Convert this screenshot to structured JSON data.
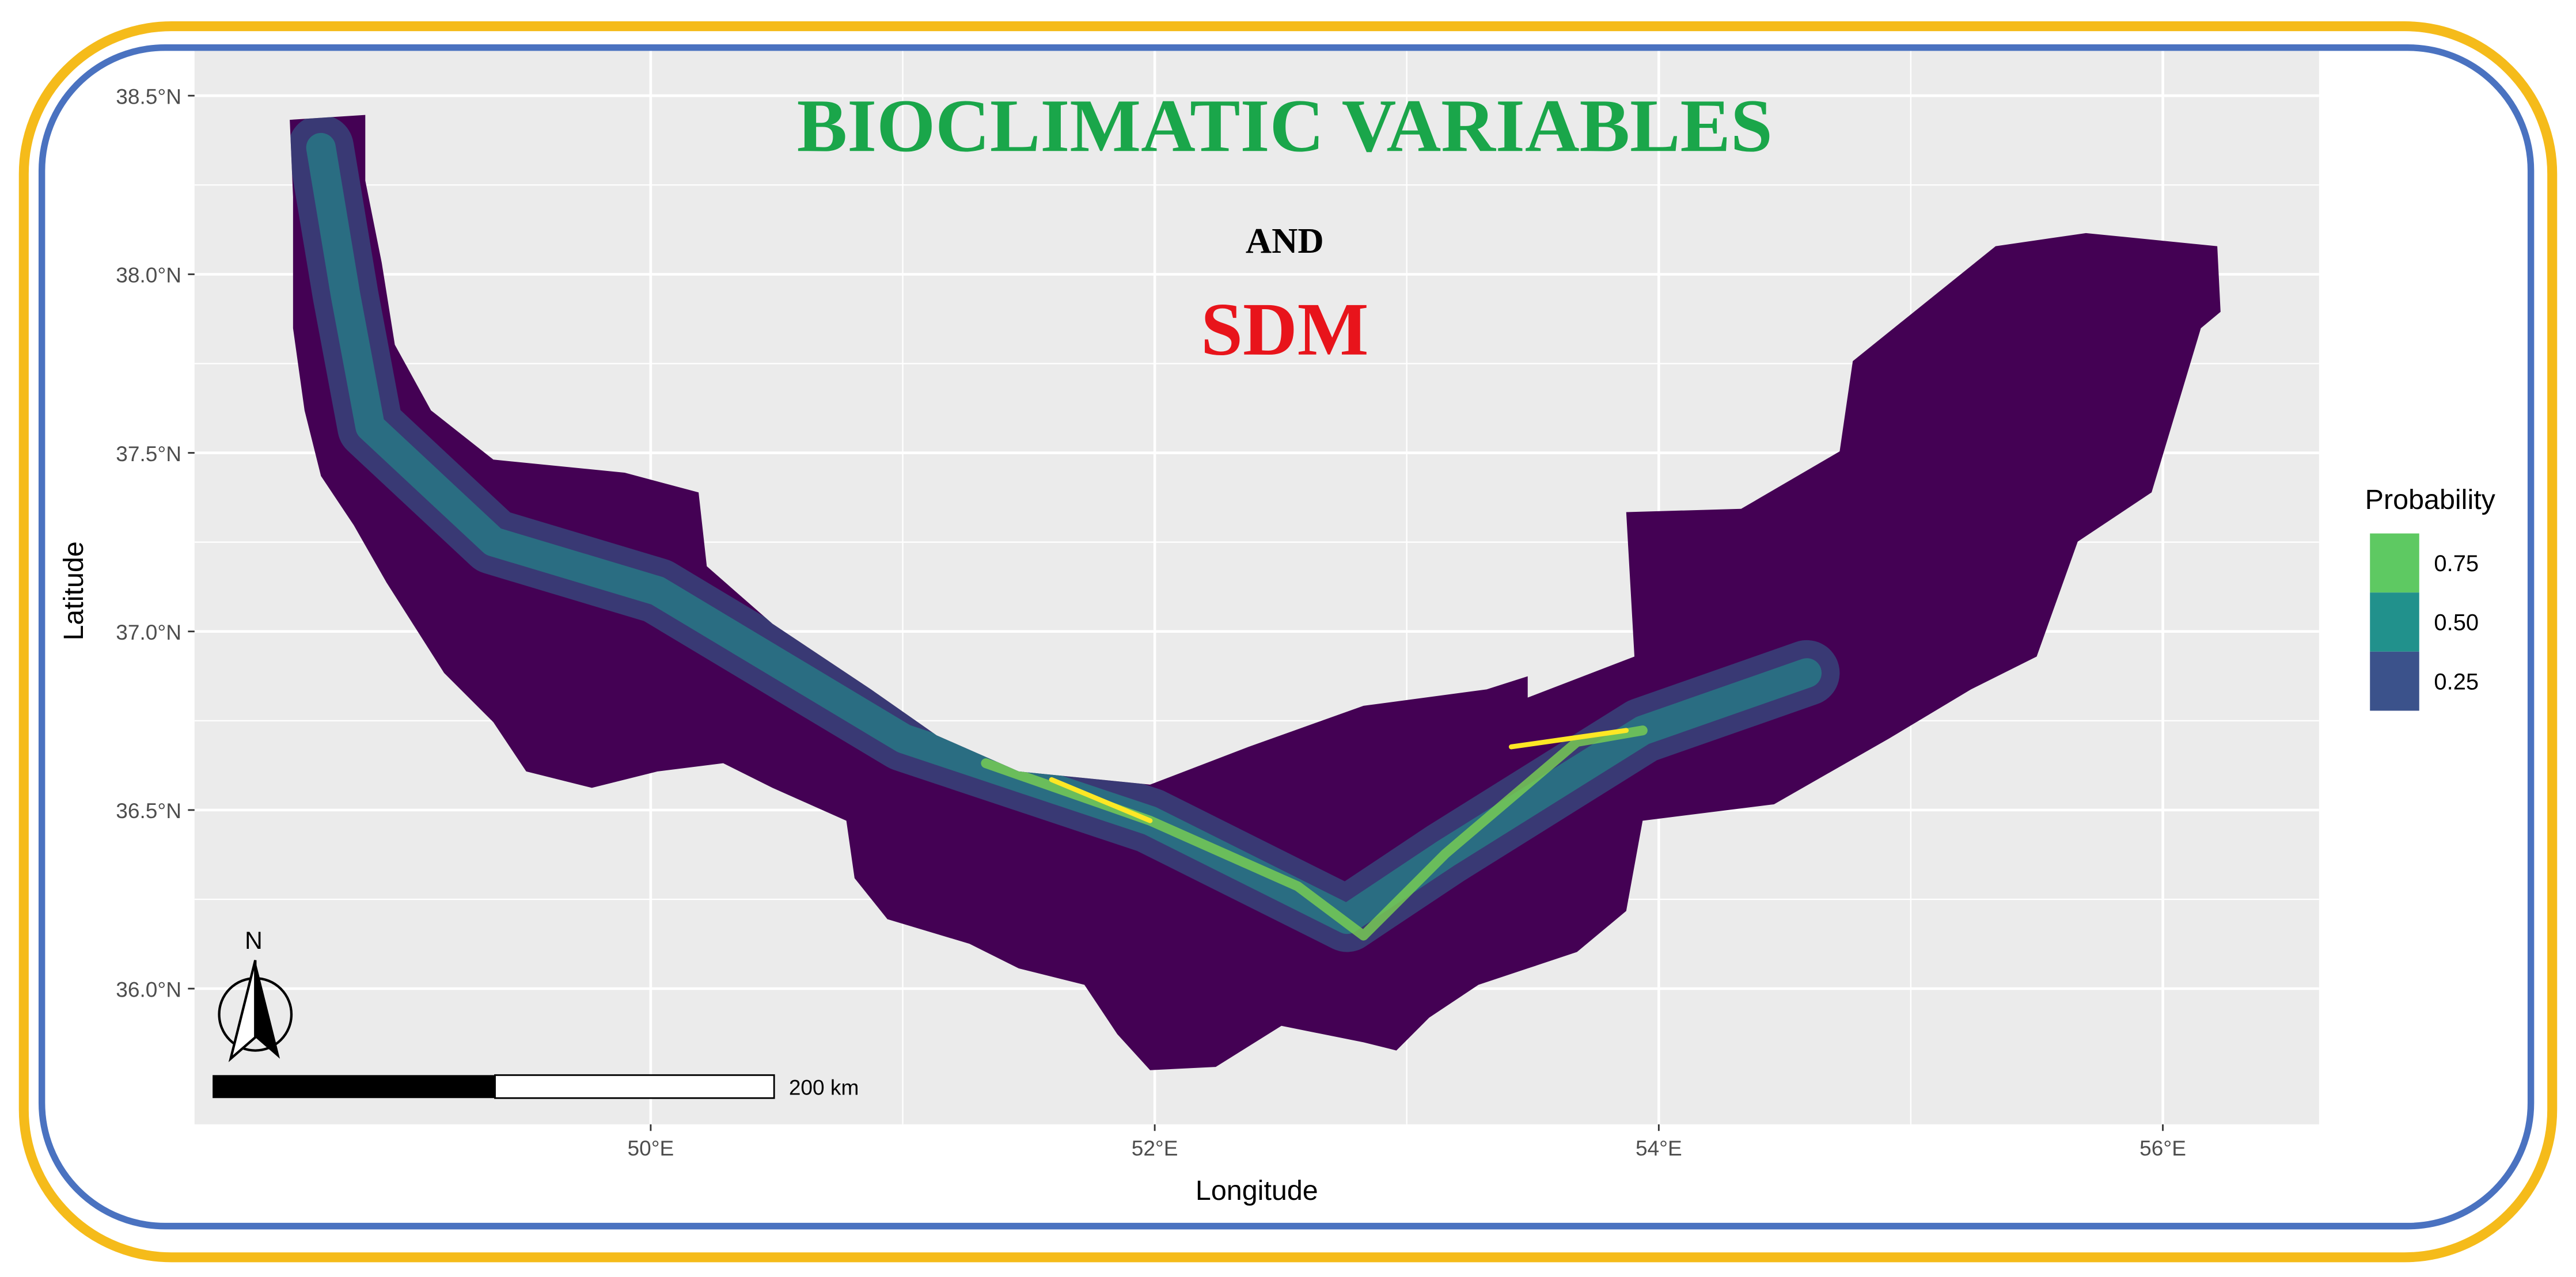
{
  "title": {
    "line1": "BIOCLIMATIC VARIABLES",
    "line2": "AND",
    "line3": "SDM"
  },
  "map": {
    "x_label": "Longitude",
    "y_label": "Latitude",
    "xlim": [
      48.19,
      56.62
    ],
    "ylim": [
      35.62,
      38.63
    ],
    "x_ticks": [
      {
        "value": 50,
        "label": "50°E"
      },
      {
        "value": 52,
        "label": "52°E"
      },
      {
        "value": 54,
        "label": "54°E"
      },
      {
        "value": 56,
        "label": "56°E"
      }
    ],
    "y_ticks": [
      {
        "value": 36,
        "label": "36.0°N"
      },
      {
        "value": 36.5,
        "label": "36.5°N"
      },
      {
        "value": 37,
        "label": "37.0°N"
      },
      {
        "value": 37.5,
        "label": "37.5°N"
      },
      {
        "value": 38,
        "label": "38.0°N"
      },
      {
        "value": 38.5,
        "label": "38.5°N"
      }
    ]
  },
  "legend": {
    "title": "Probability",
    "entries": [
      {
        "value": 0.75,
        "color": "#5ec962"
      },
      {
        "value": 0.5,
        "label": "0.50",
        "color": "#21918c"
      },
      {
        "value": 0.25,
        "color": "#3b528b"
      }
    ]
  },
  "scale_bar": {
    "label": "200 km"
  },
  "north_arrow": {
    "label": "N"
  }
}
